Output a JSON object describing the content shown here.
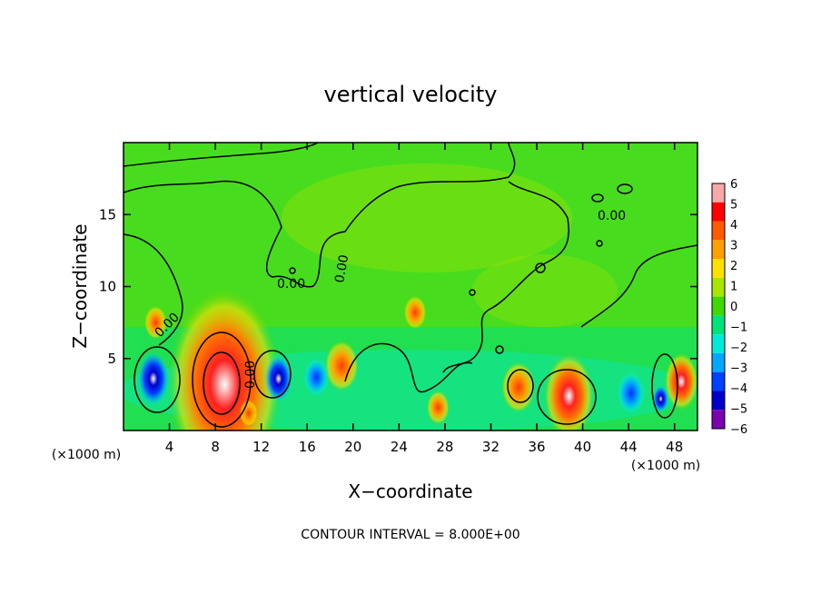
{
  "chart_data": {
    "type": "heatmap",
    "title": "vertical velocity",
    "xlabel": "X−coordinate",
    "ylabel": "Z−coordinate",
    "x_unit_left": "(×1000 m)",
    "x_unit_right": "(×1000 m)",
    "footer": "CONTOUR INTERVAL = 8.000E+00",
    "xlim": [
      0,
      50
    ],
    "ylim": [
      0,
      20
    ],
    "x_ticks": [
      4,
      8,
      12,
      16,
      20,
      24,
      28,
      32,
      36,
      40,
      44,
      48
    ],
    "y_ticks": [
      5,
      10,
      15
    ],
    "contour_labels": [
      "0.00",
      "0.00",
      "0.00",
      "0.00",
      "0.00"
    ],
    "colorbar": {
      "levels": [
        6,
        5,
        4,
        3,
        2,
        1,
        0,
        "−1",
        "−2",
        "−3",
        "−4",
        "−5",
        "−6"
      ],
      "colors": [
        "#f7a8a8",
        "#ff0000",
        "#ff5a00",
        "#ff9f00",
        "#ffe100",
        "#a8e600",
        "#3fd800",
        "#00e27a",
        "#00eadb",
        "#00a8ff",
        "#0040ff",
        "#0000c8",
        "#7a00b0"
      ]
    },
    "features": [
      {
        "x": 8.8,
        "z": 3.2,
        "w": 5.0,
        "value": 6
      },
      {
        "x": 19.0,
        "z": 4.5,
        "w": 1.5,
        "value": 4
      },
      {
        "x": 25.4,
        "z": 8.2,
        "w": 1.0,
        "value": 3
      },
      {
        "x": 34.4,
        "z": 3.0,
        "w": 1.5,
        "value": 4
      },
      {
        "x": 38.8,
        "z": 2.4,
        "w": 2.2,
        "value": 6
      },
      {
        "x": 48.6,
        "z": 3.4,
        "w": 1.5,
        "value": 6
      },
      {
        "x": 10.9,
        "z": 1.2,
        "w": 0.8,
        "value": 4
      },
      {
        "x": 27.4,
        "z": 1.6,
        "w": 1.0,
        "value": 3
      },
      {
        "x": 2.8,
        "z": 7.5,
        "w": 1.0,
        "value": 3
      },
      {
        "x": 2.6,
        "z": 3.6,
        "w": 1.4,
        "value": -6
      },
      {
        "x": 13.5,
        "z": 3.6,
        "w": 1.2,
        "value": -6
      },
      {
        "x": 16.8,
        "z": 3.7,
        "w": 1.1,
        "value": -4
      },
      {
        "x": 46.8,
        "z": 2.2,
        "w": 0.7,
        "value": -6
      },
      {
        "x": 44.2,
        "z": 2.6,
        "w": 1.2,
        "value": -4
      }
    ]
  }
}
